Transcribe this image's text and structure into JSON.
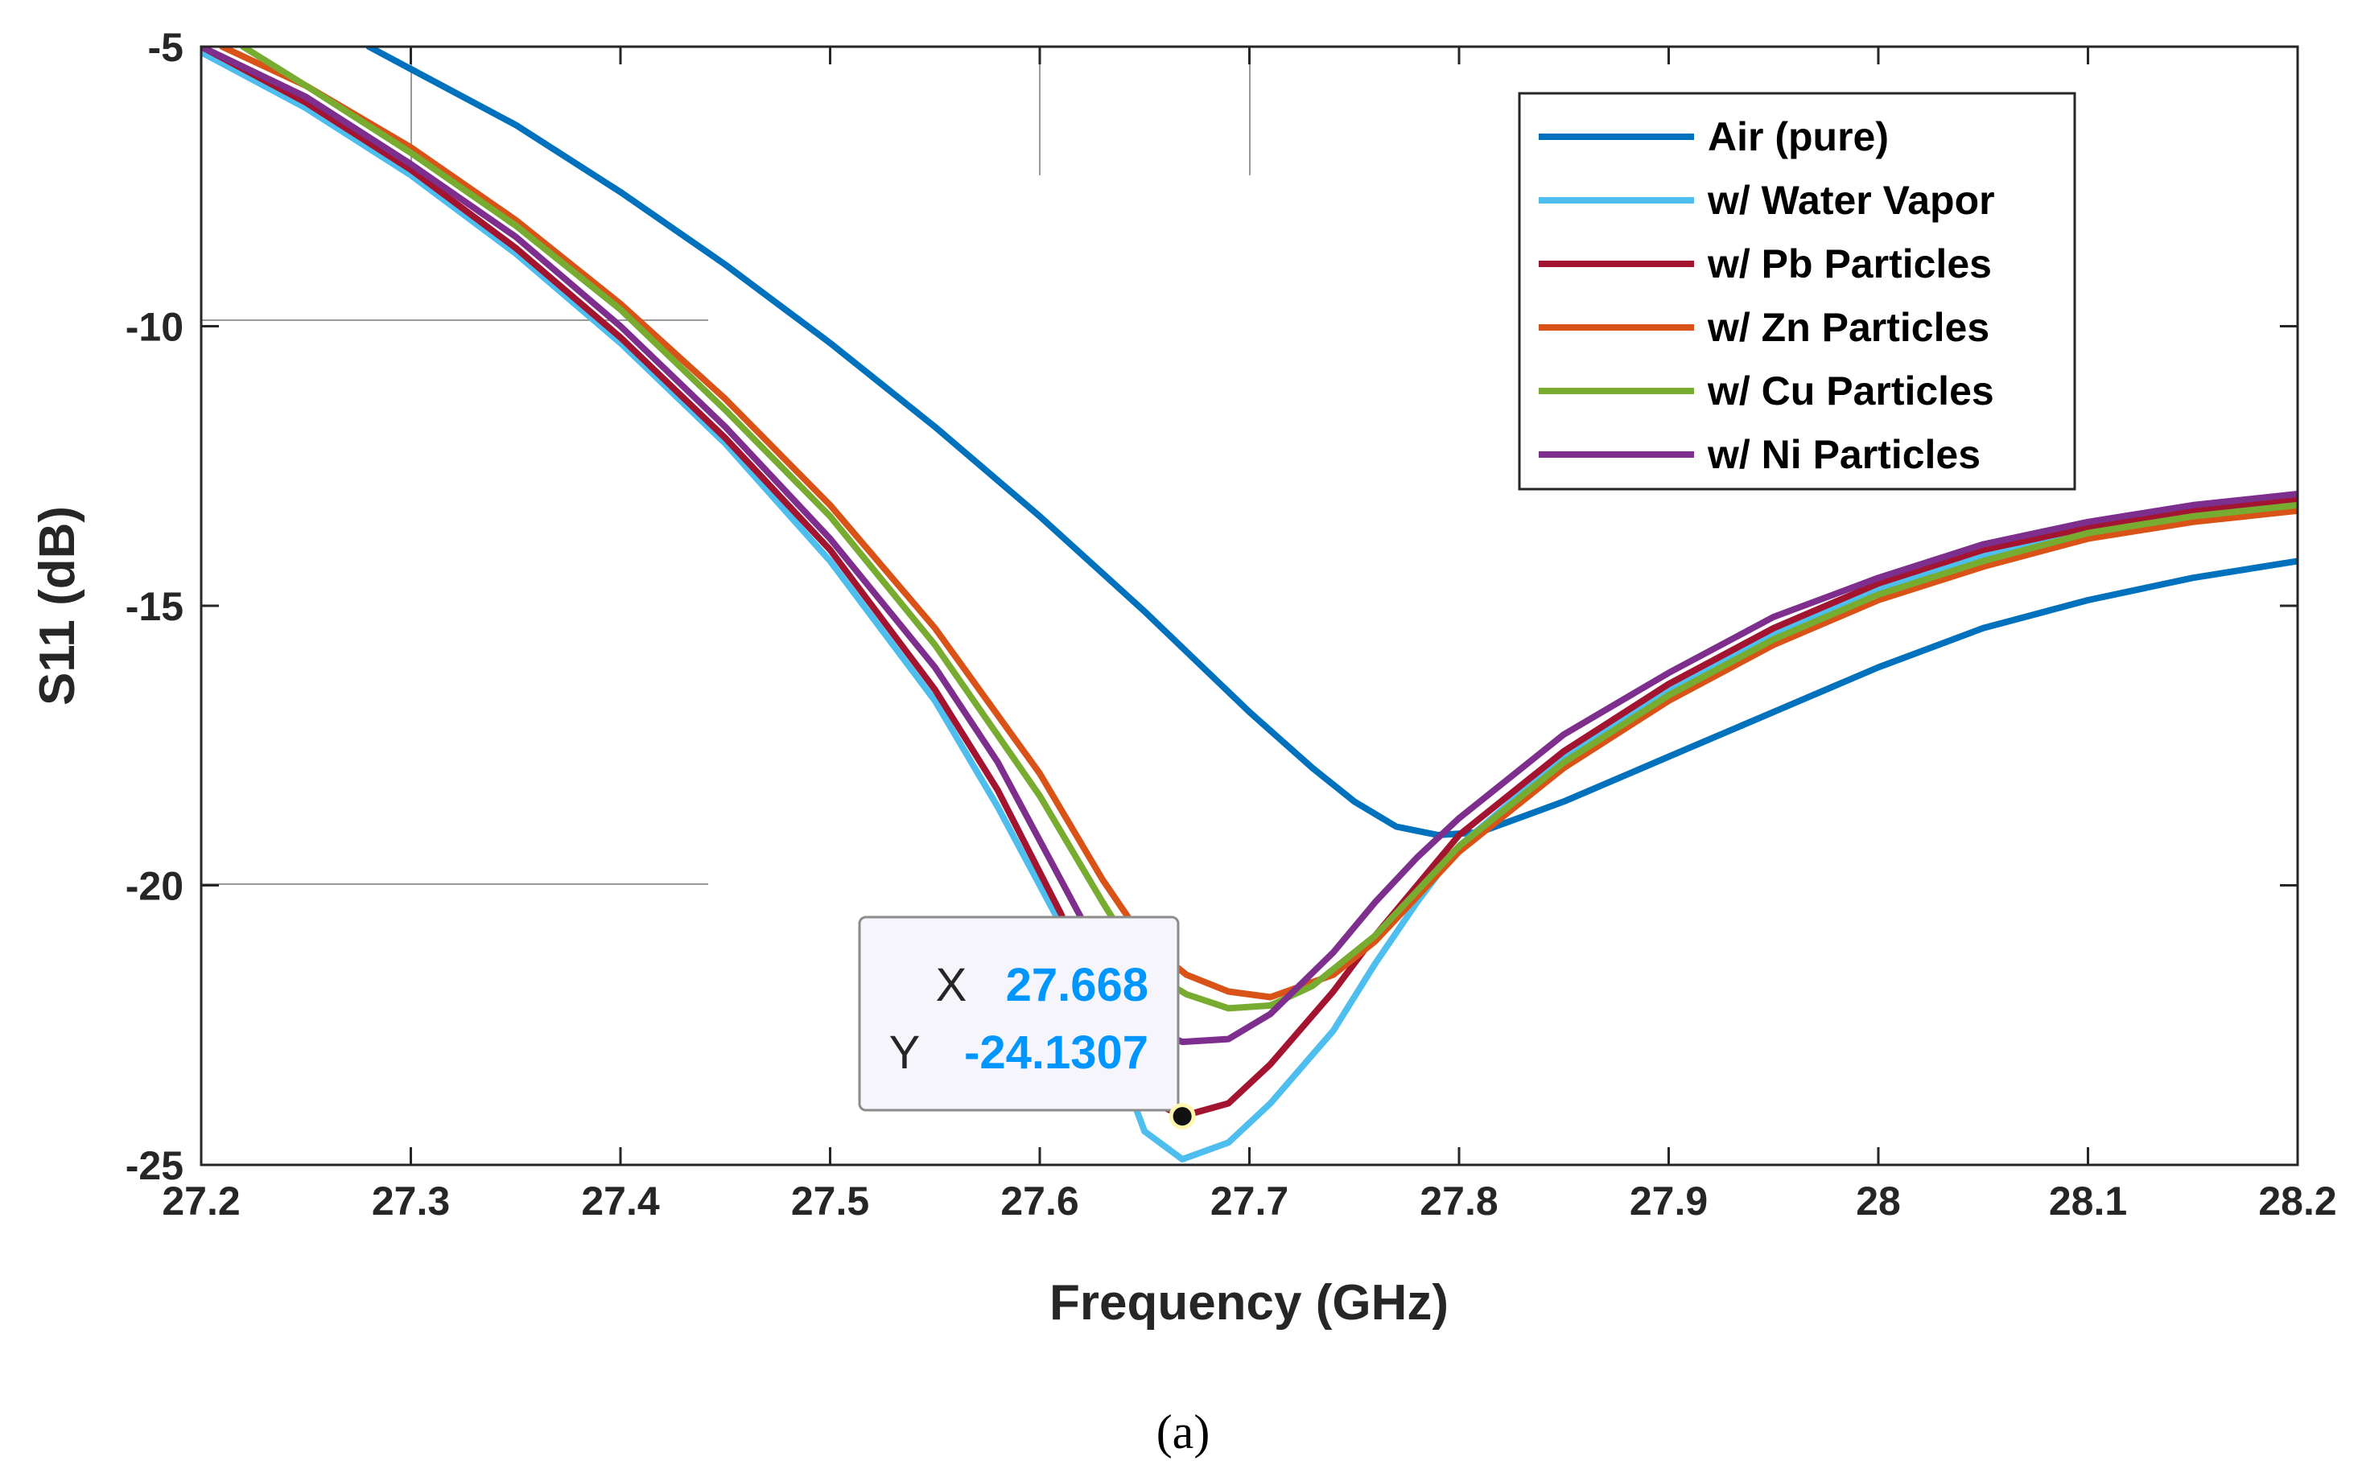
{
  "chart_data": {
    "type": "line",
    "title": "",
    "xlabel": "Frequency (GHz)",
    "ylabel": "S11 (dB)",
    "xlim": [
      27.2,
      28.2
    ],
    "ylim": [
      -25,
      -5
    ],
    "xticks": [
      27.2,
      27.3,
      27.4,
      27.5,
      27.6,
      27.7,
      27.8,
      27.9,
      28.0,
      28.1,
      28.2
    ],
    "xtick_labels": [
      "27.2",
      "27.3",
      "27.4",
      "27.5",
      "27.6",
      "27.7",
      "27.8",
      "27.9",
      "28",
      "28.1",
      "28.2"
    ],
    "yticks": [
      -5,
      -10,
      -15,
      -20,
      -25
    ],
    "ytick_labels": [
      "-5",
      "-10",
      "-15",
      "-20",
      "-25"
    ],
    "legend_position": "top-right",
    "series": [
      {
        "name": "Air (pure)",
        "color": "#0072BD",
        "points": [
          [
            27.28,
            -5.0
          ],
          [
            27.3,
            -5.4
          ],
          [
            27.35,
            -6.4
          ],
          [
            27.4,
            -7.6
          ],
          [
            27.45,
            -8.9
          ],
          [
            27.5,
            -10.3
          ],
          [
            27.55,
            -11.8
          ],
          [
            27.6,
            -13.4
          ],
          [
            27.65,
            -15.1
          ],
          [
            27.7,
            -16.9
          ],
          [
            27.73,
            -17.9
          ],
          [
            27.75,
            -18.5
          ],
          [
            27.77,
            -18.95
          ],
          [
            27.79,
            -19.1
          ],
          [
            27.81,
            -19.05
          ],
          [
            27.85,
            -18.5
          ],
          [
            27.9,
            -17.7
          ],
          [
            27.95,
            -16.9
          ],
          [
            28.0,
            -16.1
          ],
          [
            28.05,
            -15.4
          ],
          [
            28.1,
            -14.9
          ],
          [
            28.15,
            -14.5
          ],
          [
            28.2,
            -14.2
          ]
        ]
      },
      {
        "name": "w/ Water Vapor",
        "color": "#4DBEEE",
        "points": [
          [
            27.2,
            -5.1
          ],
          [
            27.25,
            -6.1
          ],
          [
            27.3,
            -7.3
          ],
          [
            27.35,
            -8.7
          ],
          [
            27.4,
            -10.3
          ],
          [
            27.45,
            -12.1
          ],
          [
            27.5,
            -14.2
          ],
          [
            27.55,
            -16.7
          ],
          [
            27.58,
            -18.6
          ],
          [
            27.61,
            -20.7
          ],
          [
            27.63,
            -22.4
          ],
          [
            27.65,
            -24.4
          ],
          [
            27.668,
            -24.9
          ],
          [
            27.69,
            -24.6
          ],
          [
            27.71,
            -23.9
          ],
          [
            27.74,
            -22.6
          ],
          [
            27.76,
            -21.4
          ],
          [
            27.78,
            -20.3
          ],
          [
            27.8,
            -19.3
          ],
          [
            27.85,
            -17.7
          ],
          [
            27.9,
            -16.5
          ],
          [
            27.95,
            -15.5
          ],
          [
            28.0,
            -14.7
          ],
          [
            28.05,
            -14.1
          ],
          [
            28.1,
            -13.7
          ],
          [
            28.15,
            -13.4
          ],
          [
            28.2,
            -13.2
          ]
        ]
      },
      {
        "name": "w/ Pb Particles",
        "color": "#A2142F",
        "points": [
          [
            27.2,
            -5.0
          ],
          [
            27.25,
            -6.0
          ],
          [
            27.3,
            -7.2
          ],
          [
            27.35,
            -8.6
          ],
          [
            27.4,
            -10.2
          ],
          [
            27.45,
            -12.0
          ],
          [
            27.5,
            -14.0
          ],
          [
            27.55,
            -16.5
          ],
          [
            27.58,
            -18.3
          ],
          [
            27.61,
            -20.5
          ],
          [
            27.63,
            -22.2
          ],
          [
            27.65,
            -23.8
          ],
          [
            27.668,
            -24.13
          ],
          [
            27.69,
            -23.9
          ],
          [
            27.71,
            -23.2
          ],
          [
            27.74,
            -21.9
          ],
          [
            27.76,
            -20.9
          ],
          [
            27.78,
            -20.0
          ],
          [
            27.8,
            -19.1
          ],
          [
            27.85,
            -17.6
          ],
          [
            27.9,
            -16.4
          ],
          [
            27.95,
            -15.4
          ],
          [
            28.0,
            -14.6
          ],
          [
            28.05,
            -14.0
          ],
          [
            28.1,
            -13.6
          ],
          [
            28.15,
            -13.3
          ],
          [
            28.2,
            -13.1
          ]
        ]
      },
      {
        "name": "w/ Zn Particles",
        "color": "#D95319",
        "points": [
          [
            27.21,
            -5.0
          ],
          [
            27.25,
            -5.7
          ],
          [
            27.3,
            -6.8
          ],
          [
            27.35,
            -8.1
          ],
          [
            27.4,
            -9.6
          ],
          [
            27.45,
            -11.3
          ],
          [
            27.5,
            -13.2
          ],
          [
            27.55,
            -15.4
          ],
          [
            27.6,
            -18.0
          ],
          [
            27.63,
            -19.9
          ],
          [
            27.65,
            -21.0
          ],
          [
            27.67,
            -21.6
          ],
          [
            27.69,
            -21.9
          ],
          [
            27.71,
            -22.0
          ],
          [
            27.74,
            -21.6
          ],
          [
            27.76,
            -21.0
          ],
          [
            27.78,
            -20.2
          ],
          [
            27.8,
            -19.4
          ],
          [
            27.85,
            -17.9
          ],
          [
            27.9,
            -16.7
          ],
          [
            27.95,
            -15.7
          ],
          [
            28.0,
            -14.9
          ],
          [
            28.05,
            -14.3
          ],
          [
            28.1,
            -13.8
          ],
          [
            28.15,
            -13.5
          ],
          [
            28.2,
            -13.3
          ]
        ]
      },
      {
        "name": "w/ Cu Particles",
        "color": "#77AC30",
        "points": [
          [
            27.22,
            -5.0
          ],
          [
            27.25,
            -5.7
          ],
          [
            27.3,
            -6.9
          ],
          [
            27.35,
            -8.2
          ],
          [
            27.4,
            -9.7
          ],
          [
            27.45,
            -11.5
          ],
          [
            27.5,
            -13.4
          ],
          [
            27.55,
            -15.7
          ],
          [
            27.6,
            -18.4
          ],
          [
            27.63,
            -20.3
          ],
          [
            27.65,
            -21.5
          ],
          [
            27.67,
            -21.95
          ],
          [
            27.69,
            -22.2
          ],
          [
            27.71,
            -22.15
          ],
          [
            27.73,
            -21.8
          ],
          [
            27.76,
            -20.9
          ],
          [
            27.78,
            -20.1
          ],
          [
            27.8,
            -19.3
          ],
          [
            27.85,
            -17.8
          ],
          [
            27.9,
            -16.6
          ],
          [
            27.95,
            -15.6
          ],
          [
            28.0,
            -14.8
          ],
          [
            28.05,
            -14.2
          ],
          [
            28.1,
            -13.7
          ],
          [
            28.15,
            -13.4
          ],
          [
            28.2,
            -13.2
          ]
        ]
      },
      {
        "name": "w/ Ni Particles",
        "color": "#7E2F8E",
        "points": [
          [
            27.2,
            -5.0
          ],
          [
            27.25,
            -5.9
          ],
          [
            27.3,
            -7.1
          ],
          [
            27.35,
            -8.4
          ],
          [
            27.4,
            -10.0
          ],
          [
            27.45,
            -11.8
          ],
          [
            27.5,
            -13.8
          ],
          [
            27.55,
            -16.1
          ],
          [
            27.58,
            -17.8
          ],
          [
            27.61,
            -19.9
          ],
          [
            27.63,
            -21.3
          ],
          [
            27.65,
            -22.5
          ],
          [
            27.668,
            -22.8
          ],
          [
            27.69,
            -22.75
          ],
          [
            27.71,
            -22.3
          ],
          [
            27.74,
            -21.2
          ],
          [
            27.76,
            -20.3
          ],
          [
            27.78,
            -19.5
          ],
          [
            27.8,
            -18.8
          ],
          [
            27.85,
            -17.3
          ],
          [
            27.9,
            -16.2
          ],
          [
            27.95,
            -15.2
          ],
          [
            28.0,
            -14.5
          ],
          [
            28.05,
            -13.9
          ],
          [
            28.1,
            -13.5
          ],
          [
            28.15,
            -13.2
          ],
          [
            28.2,
            -13.0
          ]
        ]
      }
    ],
    "datatip": {
      "x_label": "X",
      "x_value": "27.668",
      "y_label": "Y",
      "y_value": "-24.1307",
      "x": 27.668,
      "y": -24.1307,
      "value_color": "#0096FF"
    },
    "caption": "(a)"
  }
}
